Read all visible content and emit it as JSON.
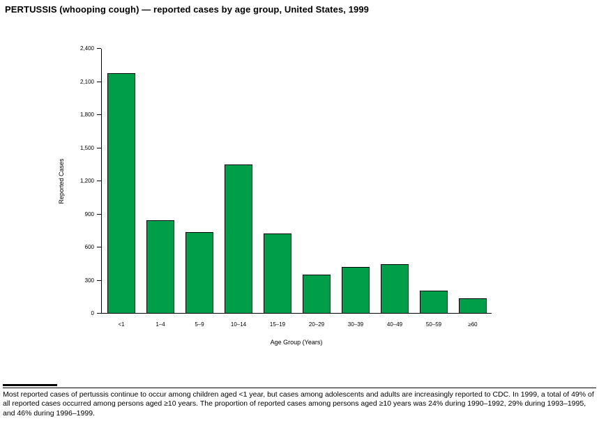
{
  "page": {
    "title": "PERTUSSIS (whooping cough) — reported cases by age group, United States, 1999",
    "footnote": "Most reported cases of pertussis continue to occur among children aged <1 year, but cases among adolescents and adults are increasingly reported to CDC. In 1999, a total of 49% of all reported cases occurred among persons aged ≥10 years. The proportion of reported cases among persons aged ≥10 years was 24% during 1990–1992, 29% during 1993–1995, and 46% during 1996–1999."
  },
  "chart_data": {
    "type": "bar",
    "title": "PERTUSSIS (whooping cough) — reported cases by age group, United States, 1999",
    "categories": [
      "<1",
      "1–4",
      "5–9",
      "10–14",
      "15–19",
      "20–29",
      "30–39",
      "40–49",
      "50–59",
      "≥60"
    ],
    "values": [
      2175,
      840,
      730,
      1345,
      720,
      345,
      420,
      440,
      200,
      135
    ],
    "xlabel": "Age Group (Years)",
    "ylabel": "Reported Cases",
    "ylim": [
      0,
      2400
    ],
    "yticks": [
      0,
      300,
      600,
      900,
      1200,
      1500,
      1800,
      2100,
      2400
    ],
    "ytick_labels": [
      "0",
      "300",
      "600",
      "900",
      "1,200",
      "1,500",
      "1,800",
      "2,100",
      "2,400"
    ],
    "bar_color": "#009E49",
    "bar_border_color": "#000000",
    "grid": false,
    "legend": "none"
  }
}
